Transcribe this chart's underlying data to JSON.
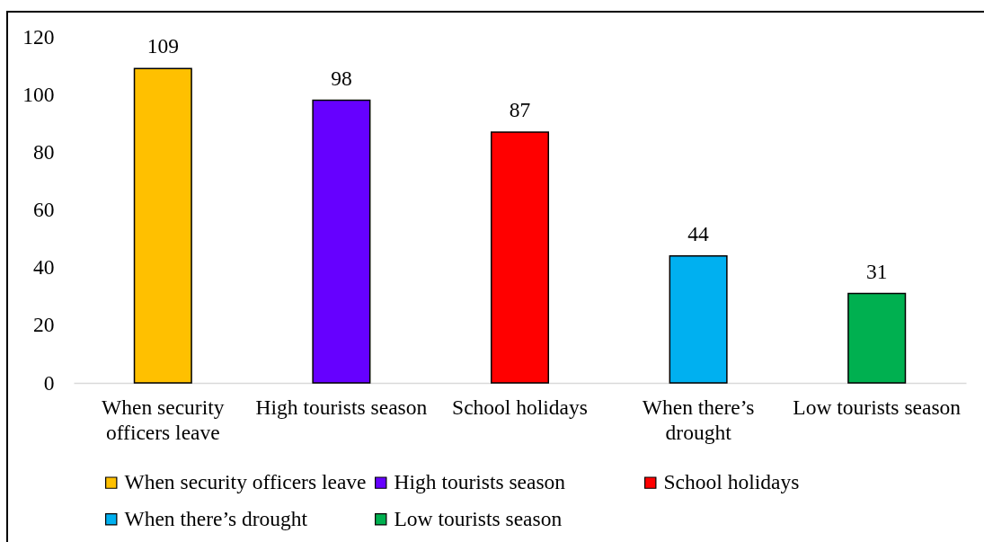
{
  "chart_data": {
    "type": "bar",
    "stacked": true,
    "categories": [
      "When security officers leave",
      "High tourists season",
      "School holidays",
      "When there’s drought",
      "Low tourists season"
    ],
    "series": [
      {
        "name": "When security officers leave",
        "color": "#ffc000",
        "values": [
          109,
          null,
          null,
          null,
          null
        ]
      },
      {
        "name": "High tourists season",
        "color": "#6600ff",
        "values": [
          null,
          98,
          null,
          null,
          null
        ]
      },
      {
        "name": "School holidays",
        "color": "#ff0000",
        "values": [
          null,
          null,
          87,
          null,
          null
        ]
      },
      {
        "name": "When there’s drought",
        "color": "#00b0f0",
        "values": [
          null,
          null,
          null,
          44,
          null
        ]
      },
      {
        "name": "Low tourists season",
        "color": "#00b050",
        "values": [
          null,
          null,
          null,
          null,
          31
        ]
      }
    ],
    "ylim": [
      0,
      120
    ],
    "yticks": [
      0,
      20,
      40,
      60,
      80,
      100,
      120
    ],
    "grid": false,
    "legend": "bottom",
    "data_labels": true
  }
}
